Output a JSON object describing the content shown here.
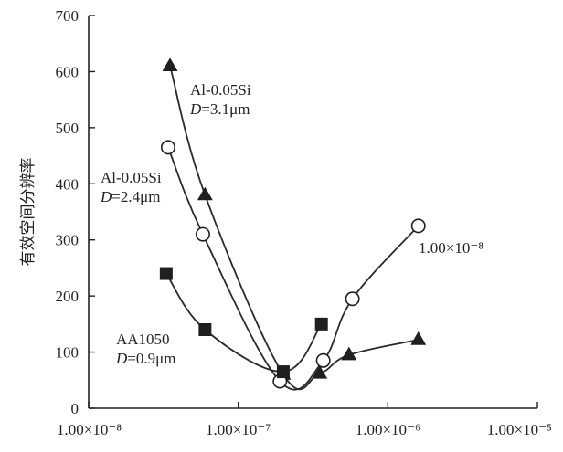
{
  "chart_data": {
    "type": "line",
    "title": "",
    "xlabel": "",
    "ylabel": "有效空间分辨率",
    "x_scale": "log",
    "xlim": [
      1e-08,
      1e-05
    ],
    "ylim": [
      0,
      700
    ],
    "x_ticks": [
      1e-08,
      1e-07,
      1e-06,
      1e-05
    ],
    "x_tick_labels": [
      "1.00×10⁻⁸",
      "1.00×10⁻⁷",
      "1.00×10⁻⁶",
      "1.00×10⁻⁵"
    ],
    "y_ticks": [
      0,
      100,
      200,
      300,
      400,
      500,
      600,
      700
    ],
    "y_tick_labels": [
      "0",
      "100",
      "200",
      "300",
      "400",
      "500",
      "600",
      "700"
    ],
    "grid": false,
    "legend": "none",
    "series": [
      {
        "marker": "triangle",
        "color": "#222222",
        "label_lines": [
          {
            "text": "Al-0.05Si",
            "italic": false
          },
          {
            "text": "D=3.1μm",
            "italic_prefix": "D",
            "rest": "=3.1μm"
          }
        ],
        "points": [
          [
            3.5e-08,
            610
          ],
          [
            6e-08,
            380
          ],
          [
            2e-07,
            60
          ],
          [
            3.5e-07,
            62
          ],
          [
            5.5e-07,
            95
          ],
          [
            1.6e-06,
            122
          ]
        ]
      },
      {
        "marker": "circle-open",
        "color": "#222222",
        "label_lines": [
          {
            "text": "Al-0.05Si",
            "italic": false
          },
          {
            "text": "D=2.4μm",
            "italic_prefix": "D",
            "rest": "=2.4μm"
          }
        ],
        "points": [
          [
            3.4e-08,
            465
          ],
          [
            5.8e-08,
            310
          ],
          [
            1.9e-07,
            48
          ],
          [
            3.7e-07,
            85
          ],
          [
            5.8e-07,
            195
          ],
          [
            1.6e-06,
            325
          ]
        ]
      },
      {
        "marker": "square",
        "color": "#222222",
        "label_lines": [
          {
            "text": "AA1050",
            "italic": false
          },
          {
            "text": "D=0.9μm",
            "italic_prefix": "D",
            "rest": "=0.9μm"
          }
        ],
        "points": [
          [
            3.3e-08,
            240
          ],
          [
            6e-08,
            140
          ],
          [
            2e-07,
            65
          ],
          [
            3.6e-07,
            150
          ]
        ]
      }
    ],
    "annotations": [
      {
        "text": "1.00×10⁻⁸"
      }
    ]
  }
}
